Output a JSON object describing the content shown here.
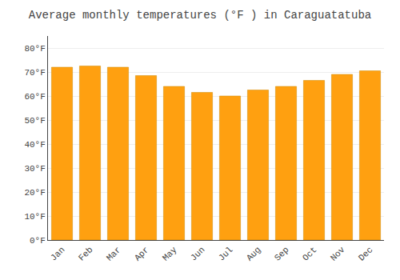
{
  "chart_data": {
    "type": "bar",
    "title": "Average monthly temperatures (°F ) in Caraguatatuba",
    "categories": [
      "Jan",
      "Feb",
      "Mar",
      "Apr",
      "May",
      "Jun",
      "Jul",
      "Aug",
      "Sep",
      "Oct",
      "Nov",
      "Dec"
    ],
    "values": [
      72,
      72.5,
      72,
      68.5,
      64,
      61.5,
      60,
      62.5,
      64,
      66.5,
      69,
      70.5
    ],
    "color": "#FFA010",
    "ylim": [
      0,
      85
    ],
    "yticks": [
      {
        "value": 0,
        "label": "0°F"
      },
      {
        "value": 10,
        "label": "10°F"
      },
      {
        "value": 20,
        "label": "20°F"
      },
      {
        "value": 30,
        "label": "30°F"
      },
      {
        "value": 40,
        "label": "40°F"
      },
      {
        "value": 50,
        "label": "50°F"
      },
      {
        "value": 60,
        "label": "60°F"
      },
      {
        "value": 70,
        "label": "70°F"
      },
      {
        "value": 80,
        "label": "80°F"
      }
    ],
    "grid": true
  }
}
